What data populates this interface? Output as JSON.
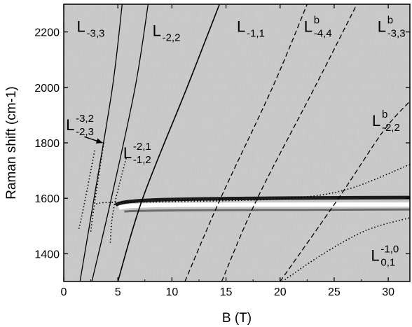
{
  "chart_data": {
    "type": "line",
    "title": "",
    "xlabel": "B (T)",
    "ylabel": "Raman shift (cm-1)",
    "xlim": [
      0,
      32
    ],
    "ylim": [
      1300,
      2300
    ],
    "x_ticks": [
      0,
      5,
      10,
      15,
      20,
      25,
      30
    ],
    "y_ticks": [
      1400,
      1600,
      1800,
      2000,
      2200
    ],
    "grid": false,
    "legend": "none",
    "background": "grayscale magneto-Raman intensity map",
    "series": [
      {
        "label": {
          "main": "L",
          "sub": "-3,3",
          "sup": ""
        },
        "style": "solid",
        "points": [
          [
            1.5,
            1300
          ],
          [
            2.8,
            1600
          ],
          [
            4.5,
            2000
          ],
          [
            5.4,
            2300
          ]
        ]
      },
      {
        "label": {
          "main": "L",
          "sub": "-2,2",
          "sup": ""
        },
        "style": "solid",
        "points": [
          [
            2.6,
            1300
          ],
          [
            4.4,
            1600
          ],
          [
            6.6,
            2000
          ],
          [
            7.8,
            2300
          ]
        ]
      },
      {
        "label": {
          "main": "L",
          "sub": "-1,1",
          "sup": ""
        },
        "style": "solid",
        "points": [
          [
            5.0,
            1300
          ],
          [
            7.3,
            1600
          ],
          [
            11.4,
            2000
          ],
          [
            14.4,
            2300
          ]
        ]
      },
      {
        "label": {
          "main": "L",
          "sub": "-4,4",
          "sup": "b"
        },
        "style": "dashed",
        "points": [
          [
            11.2,
            1300
          ],
          [
            14.5,
            1600
          ],
          [
            19.3,
            2000
          ],
          [
            22.5,
            2300
          ]
        ]
      },
      {
        "label": {
          "main": "L",
          "sub": "-3,3",
          "sup": "b"
        },
        "style": "dashed",
        "points": [
          [
            14.6,
            1300
          ],
          [
            17.9,
            1600
          ],
          [
            23.2,
            2000
          ],
          [
            27.1,
            2300
          ]
        ]
      },
      {
        "label": {
          "main": "L",
          "sub": "-2,2",
          "sup": "b"
        },
        "style": "dashed",
        "points": [
          [
            20.0,
            1300
          ],
          [
            25.4,
            1600
          ],
          [
            29.5,
            1840
          ],
          [
            32.0,
            1950
          ]
        ]
      },
      {
        "label": {
          "main": "L",
          "sub": "-2,3",
          "sup": "-3,2"
        },
        "style": "dotted",
        "points": [
          [
            1.4,
            1490
          ],
          [
            1.9,
            1580
          ],
          [
            2.9,
            1780
          ]
        ]
      },
      {
        "label": {
          "main": "L",
          "sub": "-2,3",
          "sup": "-3,2"
        },
        "style": "dotted",
        "points": [
          [
            2.5,
            1480
          ],
          [
            2.8,
            1570
          ],
          [
            3.7,
            1800
          ]
        ]
      },
      {
        "label": {
          "main": "L",
          "sub": "-1,2",
          "sup": "-2,1"
        },
        "style": "dotted",
        "points": [
          [
            4.3,
            1440
          ],
          [
            4.6,
            1560
          ],
          [
            5.8,
            1750
          ]
        ]
      },
      {
        "label": {
          "main": "L",
          "sub": "",
          "sup": ""
        },
        "style": "dotted",
        "points": [
          [
            3.0,
            1580
          ],
          [
            4.2,
            1585
          ],
          [
            10,
            1588
          ],
          [
            20,
            1598
          ],
          [
            26,
            1630
          ],
          [
            32,
            1722
          ]
        ]
      },
      {
        "label": {
          "main": "L",
          "sub": "0,1",
          "sup": "-1,0"
        },
        "style": "dotted",
        "points": [
          [
            20.2,
            1300
          ],
          [
            24,
            1400
          ],
          [
            28,
            1485
          ],
          [
            32,
            1530
          ]
        ]
      }
    ],
    "labels": [
      {
        "main": "L",
        "sub": "-3,3",
        "sup": "",
        "B": 1.2,
        "shift": 2200
      },
      {
        "main": "L",
        "sub": "-2,2",
        "sup": "",
        "B": 8.2,
        "shift": 2185
      },
      {
        "main": "L",
        "sub": "-1,1",
        "sup": "",
        "B": 16.0,
        "shift": 2200
      },
      {
        "main": "L",
        "sub": "-4,4",
        "sup": "b",
        "B": 22.2,
        "shift": 2200
      },
      {
        "main": "L",
        "sub": "-3,3",
        "sup": "b",
        "B": 29.0,
        "shift": 2200
      },
      {
        "main": "L",
        "sub": "-2,2",
        "sup": "b",
        "B": 28.5,
        "shift": 1860
      },
      {
        "main": "L",
        "sub": "-2,3",
        "sup": "-3,2",
        "B": 0.2,
        "shift": 1845
      },
      {
        "main": "L",
        "sub": "-1,2",
        "sup": "-2,1",
        "B": 5.5,
        "shift": 1745
      },
      {
        "main": "L",
        "sub": "0,1",
        "sup": "-1,0",
        "B": 28.4,
        "shift": 1375
      }
    ],
    "arrow": {
      "from": [
        1.9,
        1822
      ],
      "to": [
        3.6,
        1800
      ]
    },
    "g_band": {
      "B_start": 4.8,
      "shift": 1585
    }
  }
}
